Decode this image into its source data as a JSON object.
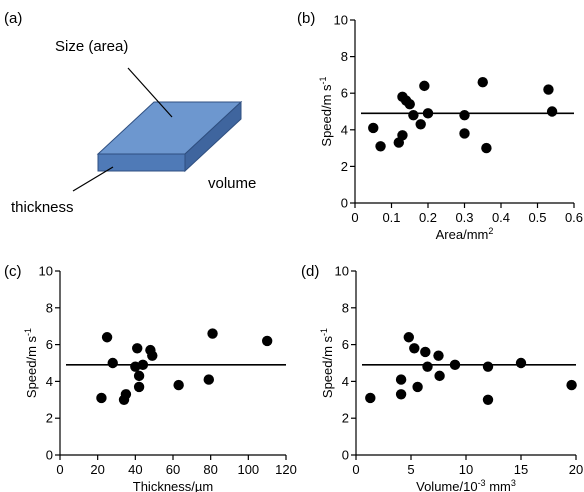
{
  "diagram": {
    "panel_label": "(a)",
    "labels": {
      "size": "Size (area)",
      "volume": "volume",
      "thickness": "thickness"
    },
    "colors": {
      "top": "#6d97cf",
      "front": "#4f7ab7",
      "side": "#3f659e",
      "edge": "#2f4f80"
    }
  },
  "chart_data": [
    {
      "panel_label": "(b)",
      "type": "scatter",
      "xlabel": "Area/mm",
      "xlabel_sup": "2",
      "ylabel": "Speed/m s",
      "ylabel_sup": "-1",
      "xlim": [
        0,
        0.6
      ],
      "ylim": [
        0,
        10
      ],
      "xticks": [
        0,
        0.1,
        0.2,
        0.3,
        0.4,
        0.5,
        0.6
      ],
      "xtick_labels": [
        "0",
        "0.1",
        "0.2",
        "0.3",
        "0.4",
        "0.5",
        "0.6"
      ],
      "yticks": [
        0,
        2,
        4,
        6,
        8,
        10
      ],
      "ytick_labels": [
        "0",
        "2",
        "4",
        "6",
        "8",
        "10"
      ],
      "points": [
        [
          0.05,
          4.1
        ],
        [
          0.07,
          3.1
        ],
        [
          0.12,
          3.3
        ],
        [
          0.13,
          3.7
        ],
        [
          0.13,
          5.8
        ],
        [
          0.14,
          5.6
        ],
        [
          0.15,
          5.4
        ],
        [
          0.16,
          4.8
        ],
        [
          0.18,
          4.3
        ],
        [
          0.19,
          6.4
        ],
        [
          0.2,
          4.9
        ],
        [
          0.3,
          4.8
        ],
        [
          0.3,
          3.8
        ],
        [
          0.35,
          6.6
        ],
        [
          0.36,
          3.0
        ],
        [
          0.53,
          6.2
        ],
        [
          0.54,
          5.0
        ]
      ],
      "mean_line": 4.9,
      "grid": false
    },
    {
      "panel_label": "(c)",
      "type": "scatter",
      "xlabel": "Thickness/µm",
      "xlabel_sup": "",
      "ylabel": "Speed/m s",
      "ylabel_sup": "-1",
      "xlim": [
        0,
        120
      ],
      "ylim": [
        0,
        10
      ],
      "xticks": [
        0,
        20,
        40,
        60,
        80,
        100,
        120
      ],
      "xtick_labels": [
        "0",
        "20",
        "40",
        "60",
        "80",
        "100",
        "120"
      ],
      "yticks": [
        0,
        2,
        4,
        6,
        8,
        10
      ],
      "ytick_labels": [
        "0",
        "2",
        "4",
        "6",
        "8",
        "10"
      ],
      "points": [
        [
          22,
          3.1
        ],
        [
          25,
          6.4
        ],
        [
          28,
          5.0
        ],
        [
          34,
          3.0
        ],
        [
          35,
          3.3
        ],
        [
          40,
          4.8
        ],
        [
          41,
          5.8
        ],
        [
          42,
          3.7
        ],
        [
          42,
          4.3
        ],
        [
          44,
          4.9
        ],
        [
          48,
          5.7
        ],
        [
          49,
          5.4
        ],
        [
          63,
          3.8
        ],
        [
          79,
          4.1
        ],
        [
          81,
          6.6
        ],
        [
          110,
          6.2
        ]
      ],
      "mean_line": 4.9,
      "grid": false
    },
    {
      "panel_label": "(d)",
      "type": "scatter",
      "xlabel": "Volume/10",
      "xlabel_mid_sup": "-3",
      "xlabel_tail": " mm",
      "xlabel_sup": "3",
      "ylabel": "Speed/m s",
      "ylabel_sup": "-1",
      "xlim": [
        0,
        20
      ],
      "ylim": [
        0,
        10
      ],
      "xticks": [
        0,
        5,
        10,
        15,
        20
      ],
      "xtick_labels": [
        "0",
        "5",
        "10",
        "15",
        "20"
      ],
      "yticks": [
        0,
        2,
        4,
        6,
        8,
        10
      ],
      "ytick_labels": [
        "0",
        "2",
        "4",
        "6",
        "8",
        "10"
      ],
      "points": [
        [
          1.3,
          3.1
        ],
        [
          4.1,
          4.1
        ],
        [
          4.1,
          3.3
        ],
        [
          4.8,
          6.4
        ],
        [
          5.3,
          5.8
        ],
        [
          5.6,
          3.7
        ],
        [
          6.3,
          5.6
        ],
        [
          6.5,
          4.8
        ],
        [
          7.5,
          5.4
        ],
        [
          7.6,
          4.3
        ],
        [
          9,
          4.9
        ],
        [
          12,
          4.8
        ],
        [
          12,
          3.0
        ],
        [
          15,
          5.0
        ],
        [
          19.6,
          3.8
        ]
      ],
      "mean_line": 4.9,
      "grid": false
    }
  ]
}
